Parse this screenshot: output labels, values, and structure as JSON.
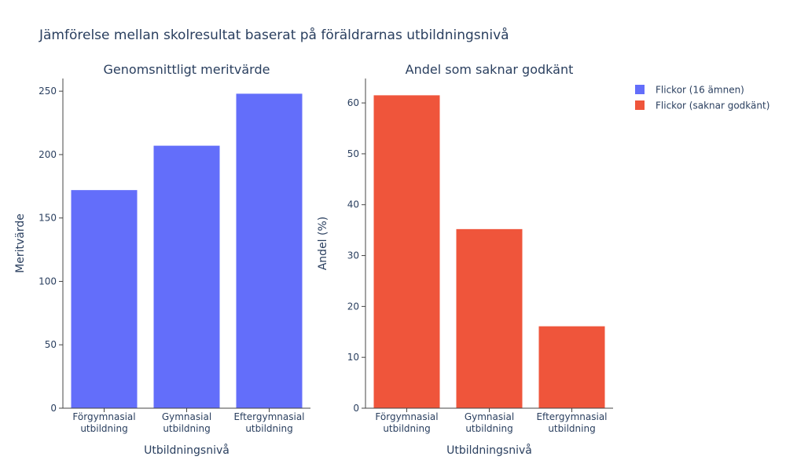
{
  "chart_data": {
    "title": "Jämförelse mellan skolresultat baserat på föräldrarnas utbildningsnivå",
    "legend": {
      "placement": "top-right",
      "items": [
        {
          "label": "Flickor (16 ämnen)",
          "color": "#636efa"
        },
        {
          "label": "Flickor (saknar godkänt)",
          "color": "#ef553b"
        }
      ]
    },
    "subplots": [
      {
        "type": "bar",
        "title": "Genomsnittligt meritvärde",
        "xlabel": "Utbildningsnivå",
        "ylabel": "Meritvärde",
        "categories": [
          [
            "Förgymnasial",
            "utbildning"
          ],
          [
            "Gymnasial",
            "utbildning"
          ],
          [
            "Eftergymnasial",
            "utbildning"
          ]
        ],
        "ylim": [
          0,
          260
        ],
        "yticks": [
          0,
          50,
          100,
          150,
          200,
          250
        ],
        "grid": false,
        "series": [
          {
            "name": "Flickor (16 ämnen)",
            "color": "#636efa",
            "values": [
              172,
              207,
              248
            ]
          }
        ]
      },
      {
        "type": "bar",
        "title": "Andel som saknar godkänt",
        "xlabel": "Utbildningsnivå",
        "ylabel": "Andel (%)",
        "categories": [
          [
            "Förgymnasial",
            "utbildning"
          ],
          [
            "Gymnasial",
            "utbildning"
          ],
          [
            "Eftergymnasial",
            "utbildning"
          ]
        ],
        "ylim": [
          0,
          64.8
        ],
        "yticks": [
          0,
          10,
          20,
          30,
          40,
          50,
          60
        ],
        "grid": false,
        "series": [
          {
            "name": "Flickor (saknar godkänt)",
            "color": "#ef553b",
            "values": [
              61.5,
              35.2,
              16.1
            ]
          }
        ]
      }
    ]
  }
}
